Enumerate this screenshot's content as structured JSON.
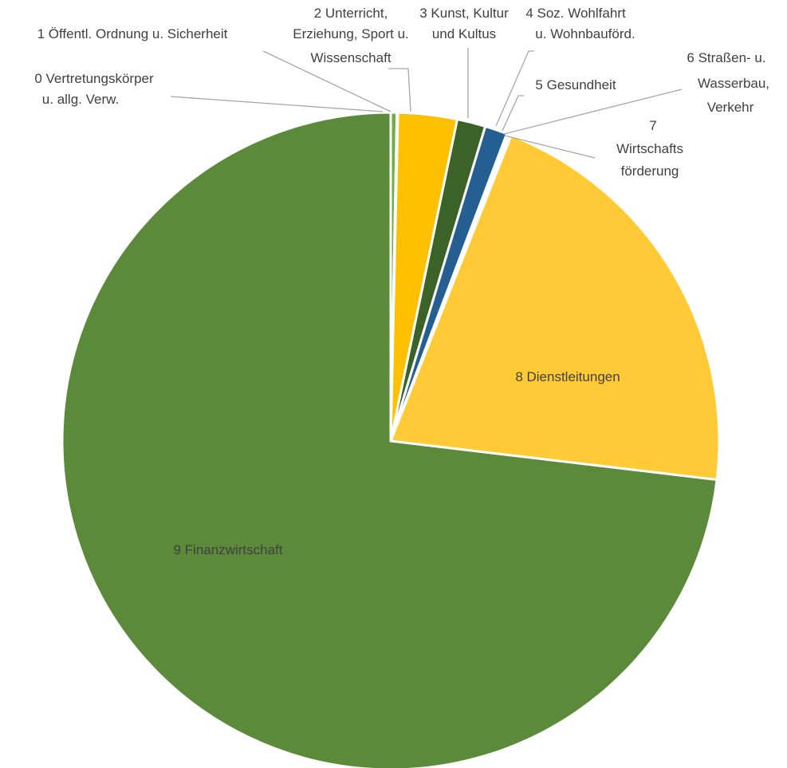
{
  "chart_data": {
    "type": "pie",
    "title": "",
    "legend": "none",
    "slices": [
      {
        "label": "0 Vertretungskörper u. allg. Verw.",
        "value": 0.3,
        "color": "#70AD47"
      },
      {
        "label": "1 Öffentl. Ordnung u. Sicherheit",
        "value": 0.05,
        "color": "#A9D18E"
      },
      {
        "label": "2 Unterricht, Erziehung, Sport u. Wissenschaft",
        "value": 2.9,
        "color": "#FFC000"
      },
      {
        "label": "3 Kunst, Kultur und Kultus",
        "value": 1.4,
        "color": "#3B6327"
      },
      {
        "label": "4 Soz. Wohlfahrt u. Wohnbauförd.",
        "value": 1.1,
        "color": "#255E91"
      },
      {
        "label": "5 Gesundheit",
        "value": 0.08,
        "color": "#8FAADC"
      },
      {
        "label": "6 Straßen- u. Wasserbau, Verkehr",
        "value": 0.05,
        "color": "#A9D18E"
      },
      {
        "label": "7 Wirtschafts förderung",
        "value": 0.1,
        "color": "#F4B183"
      },
      {
        "label": "8 Dienstleitungen",
        "value": 20.9,
        "color": "#FFCA35"
      },
      {
        "label": "9 Finanzwirtschaft",
        "value": 73.12,
        "color": "#5B8A3A"
      }
    ]
  }
}
